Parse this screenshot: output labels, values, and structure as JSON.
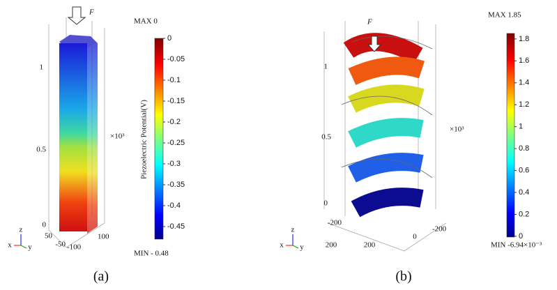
{
  "panels": [
    {
      "caption": "(a)",
      "force": "F",
      "max": "MAX  0",
      "min": "MIN - 0.48",
      "colorbar_title": "Piezoelectric Potential(V)",
      "colorbar": {
        "range": [
          -0.48,
          0
        ],
        "ticks": [
          0,
          -0.05,
          -0.1,
          -0.15,
          -0.2,
          -0.25,
          -0.3,
          -0.35,
          -0.4,
          -0.45
        ]
      },
      "axis_labels": {
        "z1": "1",
        "z05": "0.5",
        "z0": "0",
        "scale": "×10³",
        "x50": "50",
        "xm50": "-50",
        "xm100": "-100",
        "y100": "100"
      },
      "triad": {
        "z": "z",
        "x": "x",
        "y": "y"
      }
    },
    {
      "caption": "(b)",
      "force": "F",
      "max": "MAX 1.85",
      "min": "MIN  -6.94×10⁻³",
      "colorbar": {
        "range": [
          -0.00694,
          1.85
        ],
        "ticks": [
          0,
          0.2,
          0.4,
          0.6,
          0.8,
          1,
          1.2,
          1.4,
          1.6,
          1.8
        ]
      },
      "axis_labels": {
        "z1": "1",
        "z05": "0.5",
        "z0": "0",
        "scale": "×10³",
        "xm200": "-200",
        "x200a": "200",
        "x200b": "200",
        "x0": "0",
        "ym200": "-200"
      },
      "triad": {
        "z": "z",
        "x": "x",
        "y": "y"
      }
    }
  ]
}
